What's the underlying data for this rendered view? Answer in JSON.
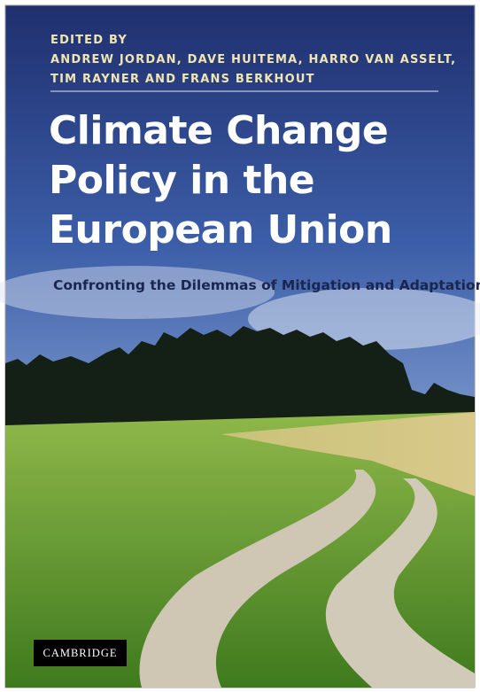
{
  "cover": {
    "editor_label": "EDITED BY",
    "editors": [
      "ANDREW JORDAN, DAVE HUITEMA, HARRO VAN ASSELT,",
      "TIM RAYNER AND FRANS BERKHOUT"
    ],
    "title": [
      "Climate Change",
      "Policy in the",
      "European Union"
    ],
    "subtitle": "Confronting the Dilemmas of Mitigation and Adaptation?",
    "publisher": "CAMBRIDGE"
  }
}
